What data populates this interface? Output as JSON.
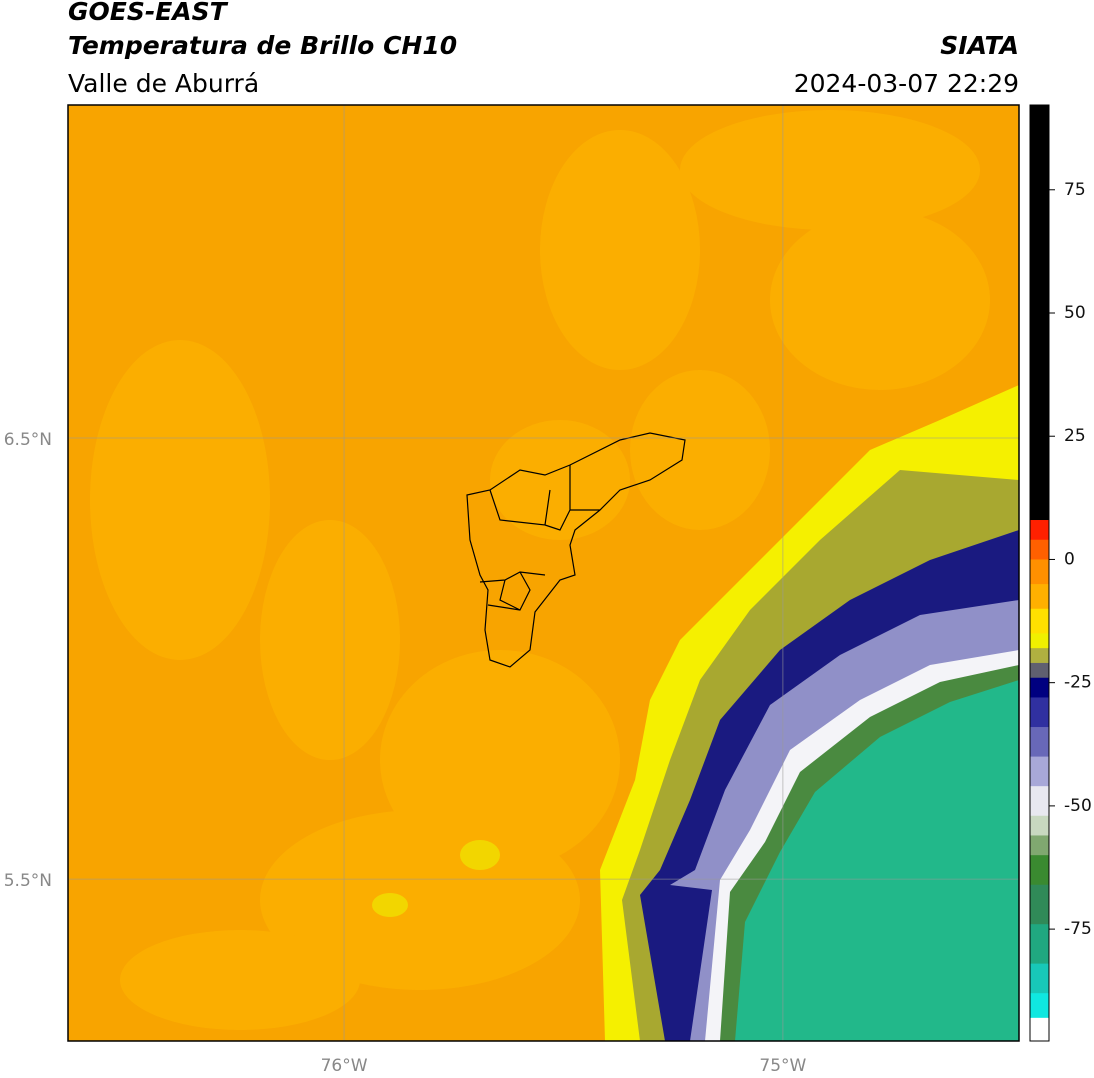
{
  "header": {
    "title": "GOES-EAST",
    "subtitle": "Temperatura de Brillo CH10",
    "region": "Valle de Aburrá",
    "source": "SIATA",
    "datetime": "2024-03-07 22:29"
  },
  "map": {
    "xlim": [
      -76.629,
      -74.462
    ],
    "ylim": [
      5.133,
      7.255
    ],
    "xticks": [
      {
        "value": -76,
        "label": "76°W"
      },
      {
        "value": -75,
        "label": "75°W"
      }
    ],
    "yticks": [
      {
        "value": 6.5,
        "label": "6.5°N"
      },
      {
        "value": 5.5,
        "label": "5.5°N"
      }
    ],
    "grid": true
  },
  "colorbar": {
    "lim": [
      -97.7,
      92.2
    ],
    "ticks": [
      75,
      50,
      25,
      0,
      -25,
      -50,
      -75
    ],
    "segments": [
      {
        "from": 8,
        "to": 92.2,
        "color": "#000000"
      },
      {
        "from": 4,
        "to": 8,
        "color": "#ff2000"
      },
      {
        "from": 0,
        "to": 4,
        "color": "#ff6000"
      },
      {
        "from": -5,
        "to": 0,
        "color": "#ff9000"
      },
      {
        "from": -10,
        "to": -5,
        "color": "#ffb000"
      },
      {
        "from": -15,
        "to": -10,
        "color": "#ffe000"
      },
      {
        "from": -18,
        "to": -15,
        "color": "#f0f000"
      },
      {
        "from": -21,
        "to": -18,
        "color": "#b0b040"
      },
      {
        "from": -24,
        "to": -21,
        "color": "#606070"
      },
      {
        "from": -28,
        "to": -24,
        "color": "#000080"
      },
      {
        "from": -34,
        "to": -28,
        "color": "#3030a0"
      },
      {
        "from": -40,
        "to": -34,
        "color": "#6868b8"
      },
      {
        "from": -46,
        "to": -40,
        "color": "#a8a8d8"
      },
      {
        "from": -52,
        "to": -46,
        "color": "#e8e8f0"
      },
      {
        "from": -56,
        "to": -52,
        "color": "#c8d8c0"
      },
      {
        "from": -60,
        "to": -56,
        "color": "#80a870"
      },
      {
        "from": -66,
        "to": -60,
        "color": "#3a8a30"
      },
      {
        "from": -74,
        "to": -66,
        "color": "#308a58"
      },
      {
        "from": -82,
        "to": -74,
        "color": "#20a880"
      },
      {
        "from": -88,
        "to": -82,
        "color": "#18c8b8"
      },
      {
        "from": -93,
        "to": -88,
        "color": "#10e8e0"
      },
      {
        "from": -97.7,
        "to": -93,
        "color": "#ffffff"
      }
    ]
  }
}
